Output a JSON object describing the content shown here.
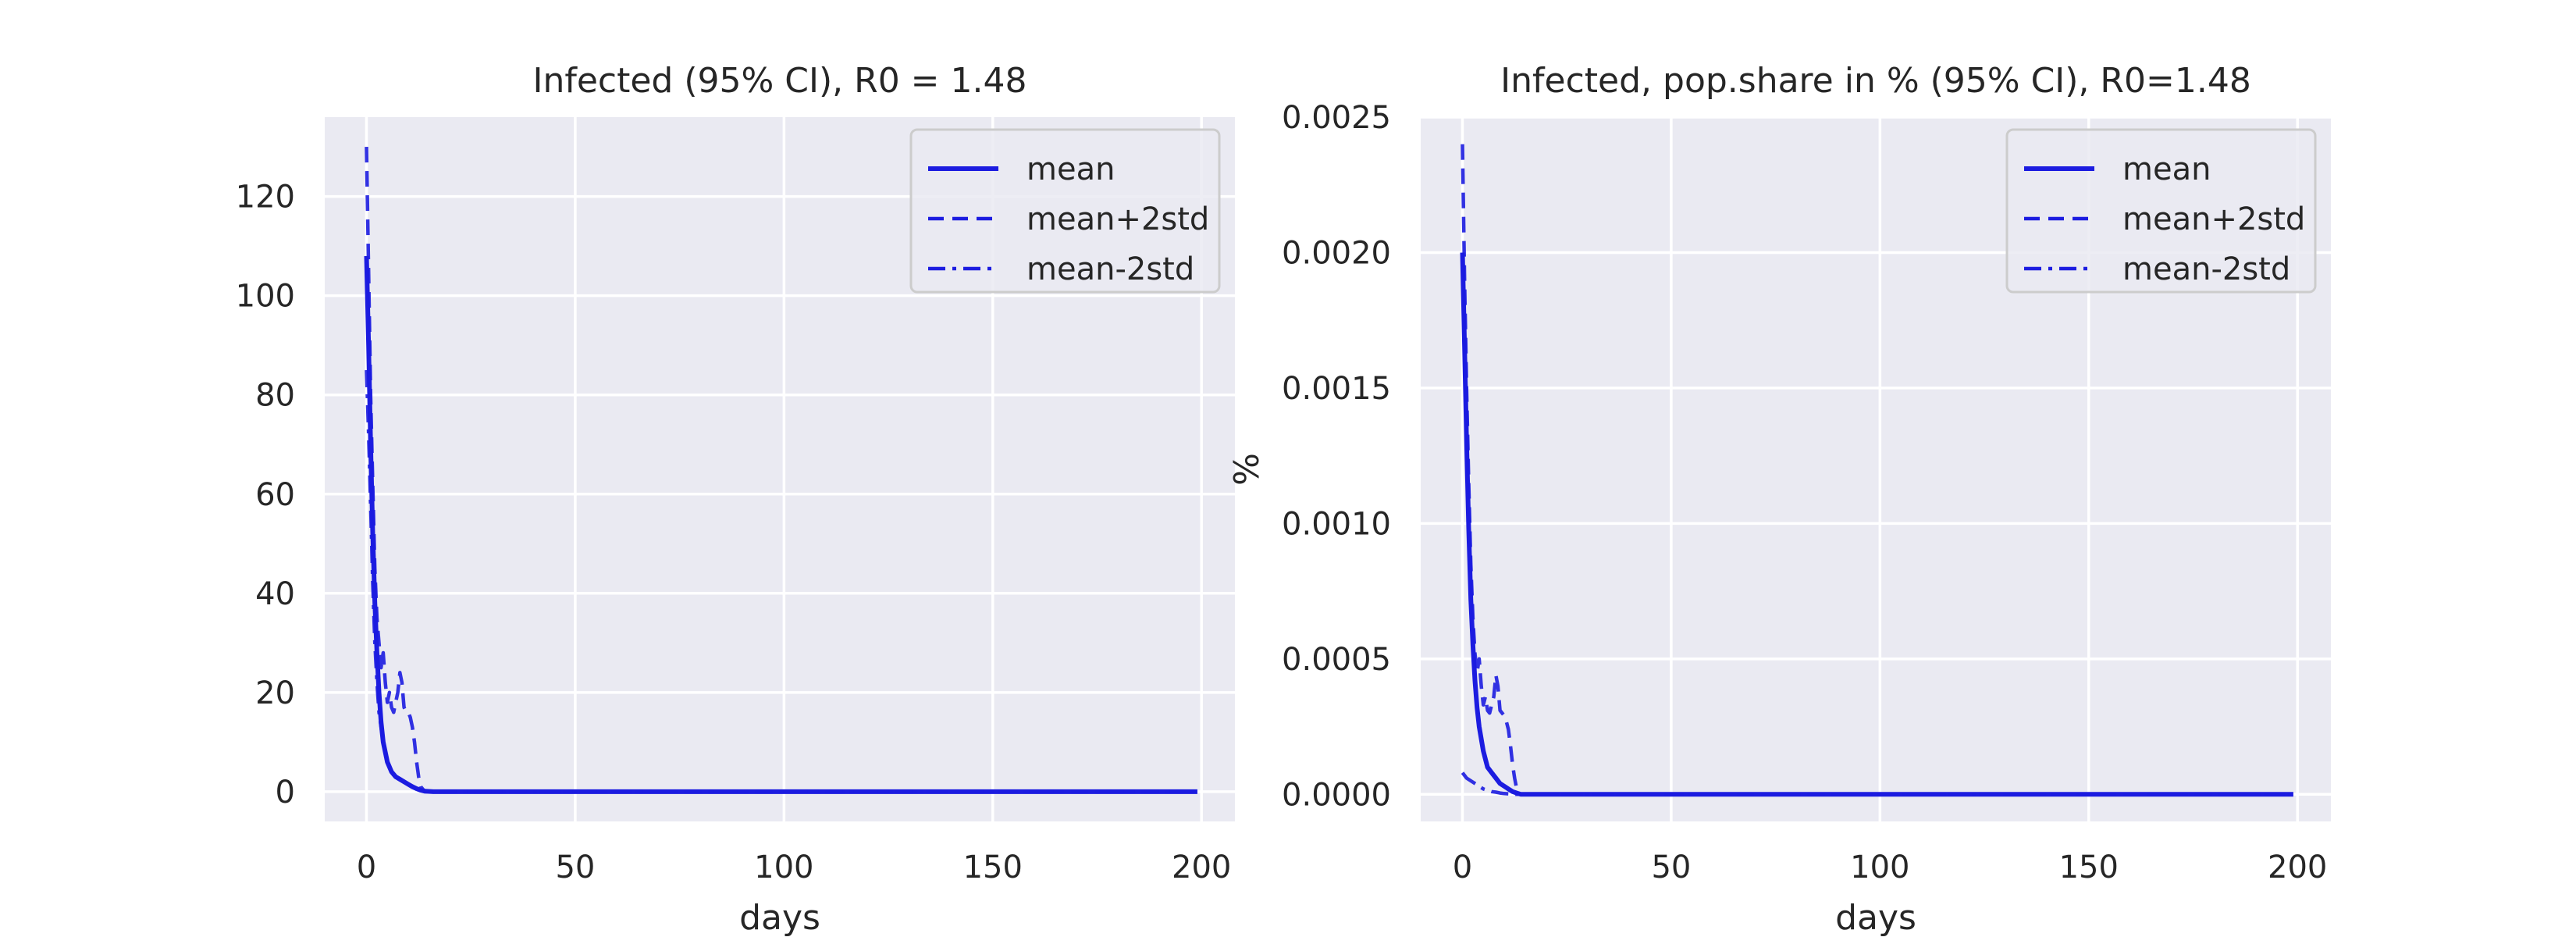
{
  "chart_data": [
    {
      "type": "line",
      "title": "Infected (95% CI), R0 = 1.48",
      "xlabel": "days",
      "ylabel": "",
      "xlim": [
        -10,
        208
      ],
      "ylim": [
        -6,
        136
      ],
      "xticks": [
        0,
        50,
        100,
        150,
        200
      ],
      "yticks": [
        0,
        20,
        40,
        60,
        80,
        100,
        120
      ],
      "ytick_labels": [
        "0",
        "20",
        "40",
        "60",
        "80",
        "100",
        "120"
      ],
      "grid": true,
      "legend_position": "top-right",
      "series": [
        {
          "name": "mean",
          "style": "solid",
          "x": [
            0,
            0.5,
            1,
            1.5,
            2,
            2.5,
            3,
            3.5,
            4,
            5,
            6,
            7,
            8,
            9,
            10,
            11,
            12,
            13,
            14,
            16,
            20,
            30,
            50,
            100,
            150,
            199
          ],
          "y": [
            108,
            90,
            70,
            52,
            38,
            28,
            20,
            14,
            10,
            6,
            4,
            3,
            2.5,
            2,
            1.5,
            1,
            0.6,
            0.3,
            0.1,
            0,
            0,
            0,
            0,
            0,
            0,
            0
          ]
        },
        {
          "name": "mean+2std",
          "style": "dashed",
          "x": [
            0,
            0.5,
            1,
            1.5,
            2,
            2.5,
            3,
            3.5,
            4,
            4.5,
            5,
            5.5,
            6,
            6.5,
            7,
            7.5,
            8,
            8.5,
            9,
            9.5,
            10,
            10.5,
            11,
            11.5,
            12,
            12.5,
            13,
            14,
            16,
            20,
            50,
            100,
            150,
            199
          ],
          "y": [
            130,
            105,
            80,
            62,
            45,
            35,
            30,
            25,
            28,
            22,
            18,
            20,
            17,
            16,
            18,
            20,
            24,
            22,
            17,
            16,
            16,
            15,
            13,
            10,
            6,
            3,
            1,
            0,
            0,
            0,
            0,
            0,
            0,
            0
          ]
        },
        {
          "name": "mean-2std",
          "style": "dashdot",
          "x": [
            0,
            0.5,
            1,
            1.5,
            2,
            2.5,
            3,
            4,
            5,
            6,
            7,
            8,
            9,
            10,
            11,
            12,
            13,
            14,
            16,
            20,
            50,
            100,
            150,
            199
          ],
          "y": [
            85,
            72,
            58,
            42,
            30,
            22,
            16,
            10,
            6,
            4,
            3,
            2.5,
            2,
            1.5,
            1,
            0.6,
            0.3,
            0.1,
            0,
            0,
            0,
            0,
            0,
            0
          ]
        }
      ]
    },
    {
      "type": "line",
      "title": "Infected, pop.share in % (95% CI), R0=1.48",
      "xlabel": "days",
      "ylabel": "%",
      "xlim": [
        -10,
        208
      ],
      "ylim": [
        -0.0001,
        0.0025
      ],
      "xticks": [
        0,
        50,
        100,
        150,
        200
      ],
      "yticks": [
        0,
        0.0005,
        0.001,
        0.0015,
        0.002,
        0.0025
      ],
      "ytick_labels": [
        "0.0000",
        "0.0005",
        "0.0010",
        "0.0015",
        "0.0020",
        "0.0025"
      ],
      "grid": true,
      "legend_position": "top-right",
      "series": [
        {
          "name": "mean",
          "style": "solid",
          "x": [
            0,
            0.5,
            1,
            1.5,
            2,
            2.5,
            3,
            3.5,
            4,
            5,
            6,
            7,
            8,
            9,
            10,
            11,
            12,
            13,
            14,
            16,
            20,
            50,
            100,
            150,
            199
          ],
          "y": [
            0.002,
            0.00165,
            0.0013,
            0.00098,
            0.00072,
            0.00055,
            0.00042,
            0.00032,
            0.00025,
            0.00016,
            0.0001,
            8e-05,
            6e-05,
            4e-05,
            3e-05,
            2e-05,
            1e-05,
            5e-06,
            0,
            0,
            0,
            0,
            0,
            0,
            0
          ]
        },
        {
          "name": "mean+2std",
          "style": "dashed",
          "x": [
            0,
            0.5,
            1,
            1.5,
            2,
            2.5,
            3,
            3.5,
            4,
            4.5,
            5,
            5.5,
            6,
            6.5,
            7,
            7.5,
            8,
            8.5,
            9,
            9.5,
            10,
            10.5,
            11,
            11.5,
            12,
            12.5,
            13,
            14,
            16,
            20,
            50,
            100,
            150,
            199
          ],
          "y": [
            0.0024,
            0.0019,
            0.0015,
            0.00115,
            0.00085,
            0.00065,
            0.00052,
            0.00045,
            0.0005,
            0.0004,
            0.00033,
            0.00036,
            0.00031,
            0.0003,
            0.00033,
            0.00036,
            0.00044,
            0.0004,
            0.00031,
            0.0003,
            0.00029,
            0.00027,
            0.00024,
            0.00018,
            0.00011,
            6e-05,
            2e-05,
            0,
            0,
            0,
            0,
            0,
            0,
            0
          ]
        },
        {
          "name": "mean-2std",
          "style": "dashdot",
          "x": [
            0,
            1,
            2,
            3,
            4,
            5,
            6,
            7,
            8,
            9,
            10,
            11,
            12,
            13,
            14,
            16,
            20,
            50,
            100,
            150,
            199
          ],
          "y": [
            8e-05,
            6e-05,
            5e-05,
            4e-05,
            3e-05,
            2e-05,
            1.5e-05,
            1e-05,
            8e-06,
            5e-06,
            3e-06,
            2e-06,
            1e-06,
            0,
            0,
            0,
            0,
            0,
            0,
            0,
            0
          ]
        }
      ]
    }
  ],
  "colors": {
    "line": "#1c1ce0",
    "panel_bg": "#eaeaf2",
    "grid": "#ffffff",
    "text": "#262626"
  }
}
